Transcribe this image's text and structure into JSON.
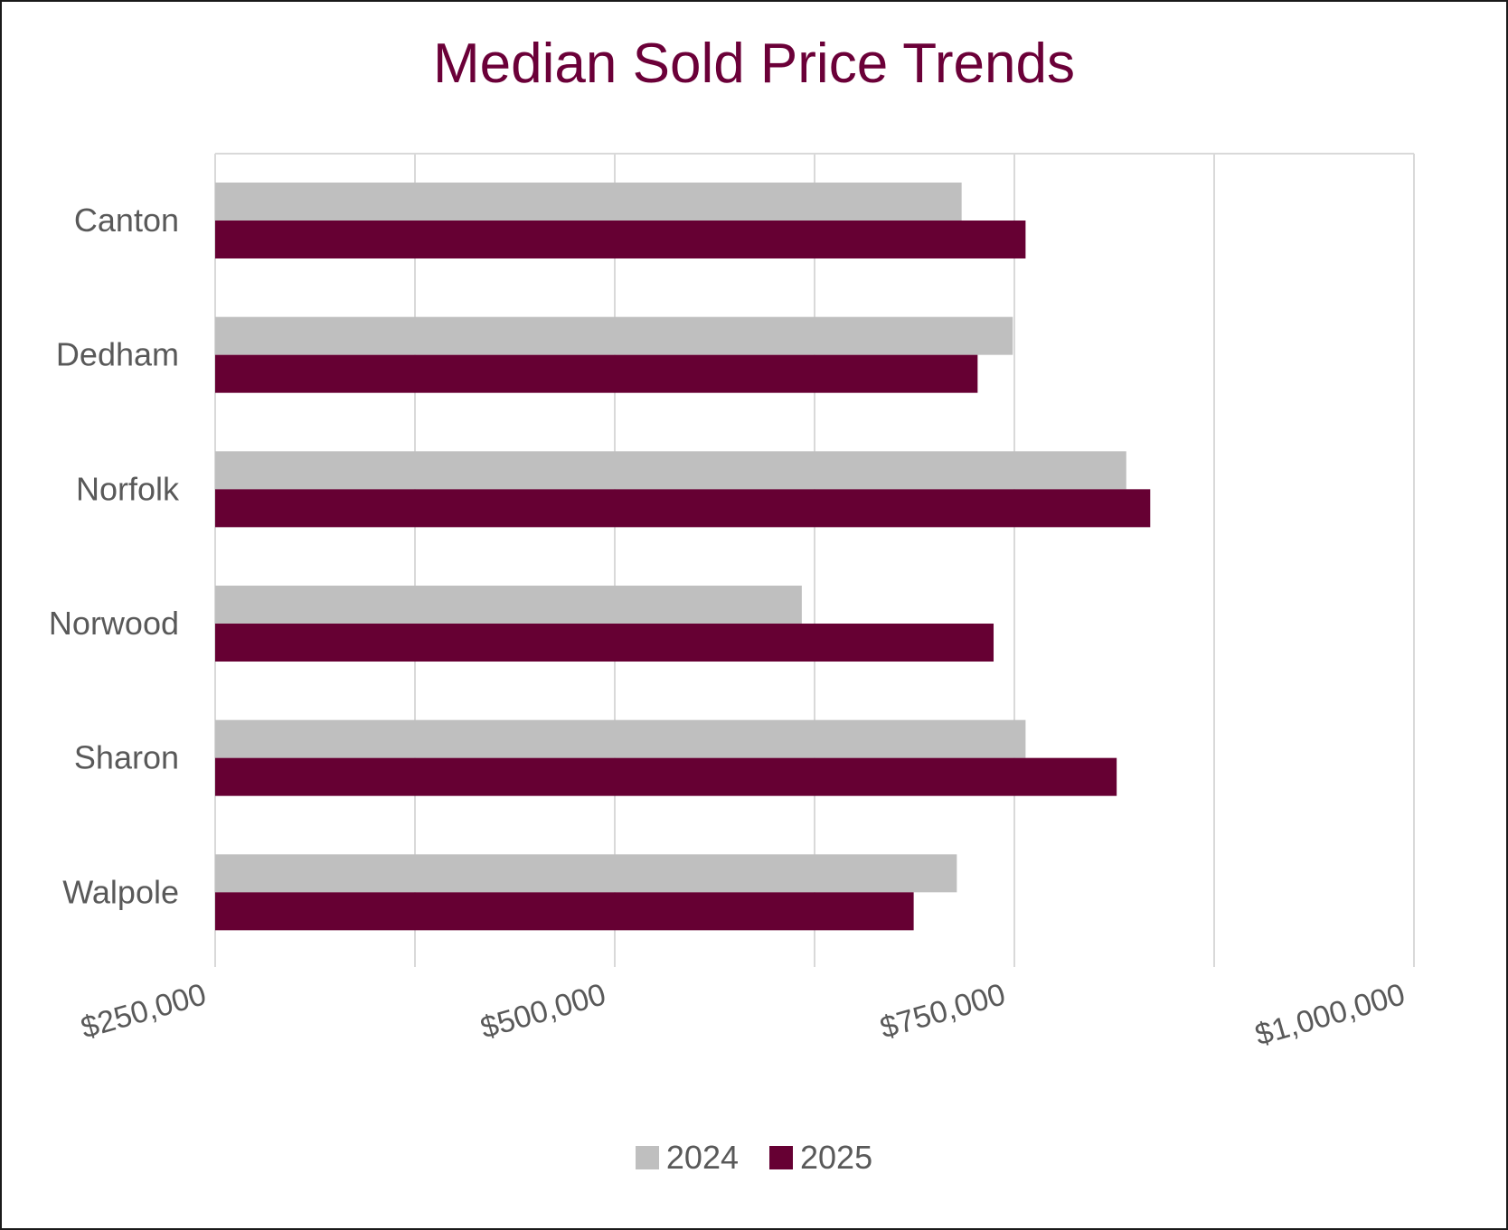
{
  "chart_data": {
    "type": "bar",
    "orientation": "horizontal",
    "title": "Median Sold Price Trends",
    "categories": [
      "Canton",
      "Dedham",
      "Norfolk",
      "Norwood",
      "Sharon",
      "Walpole"
    ],
    "series": [
      {
        "name": "2024",
        "color": "#bfbfbf",
        "values": [
          717000,
          749000,
          820000,
          617000,
          757000,
          714000
        ]
      },
      {
        "name": "2025",
        "color": "#660033",
        "values": [
          757000,
          727000,
          835000,
          737000,
          814000,
          687000
        ]
      }
    ],
    "xlim": [
      250000,
      1000000
    ],
    "x_major_ticks": [
      250000,
      500000,
      750000,
      1000000
    ],
    "x_tick_labels": [
      "$250,000",
      "$500,000",
      "$750,000",
      "$1,000,000"
    ],
    "x_gridline_step": 125000,
    "grid": true,
    "legend_position": "bottom"
  }
}
